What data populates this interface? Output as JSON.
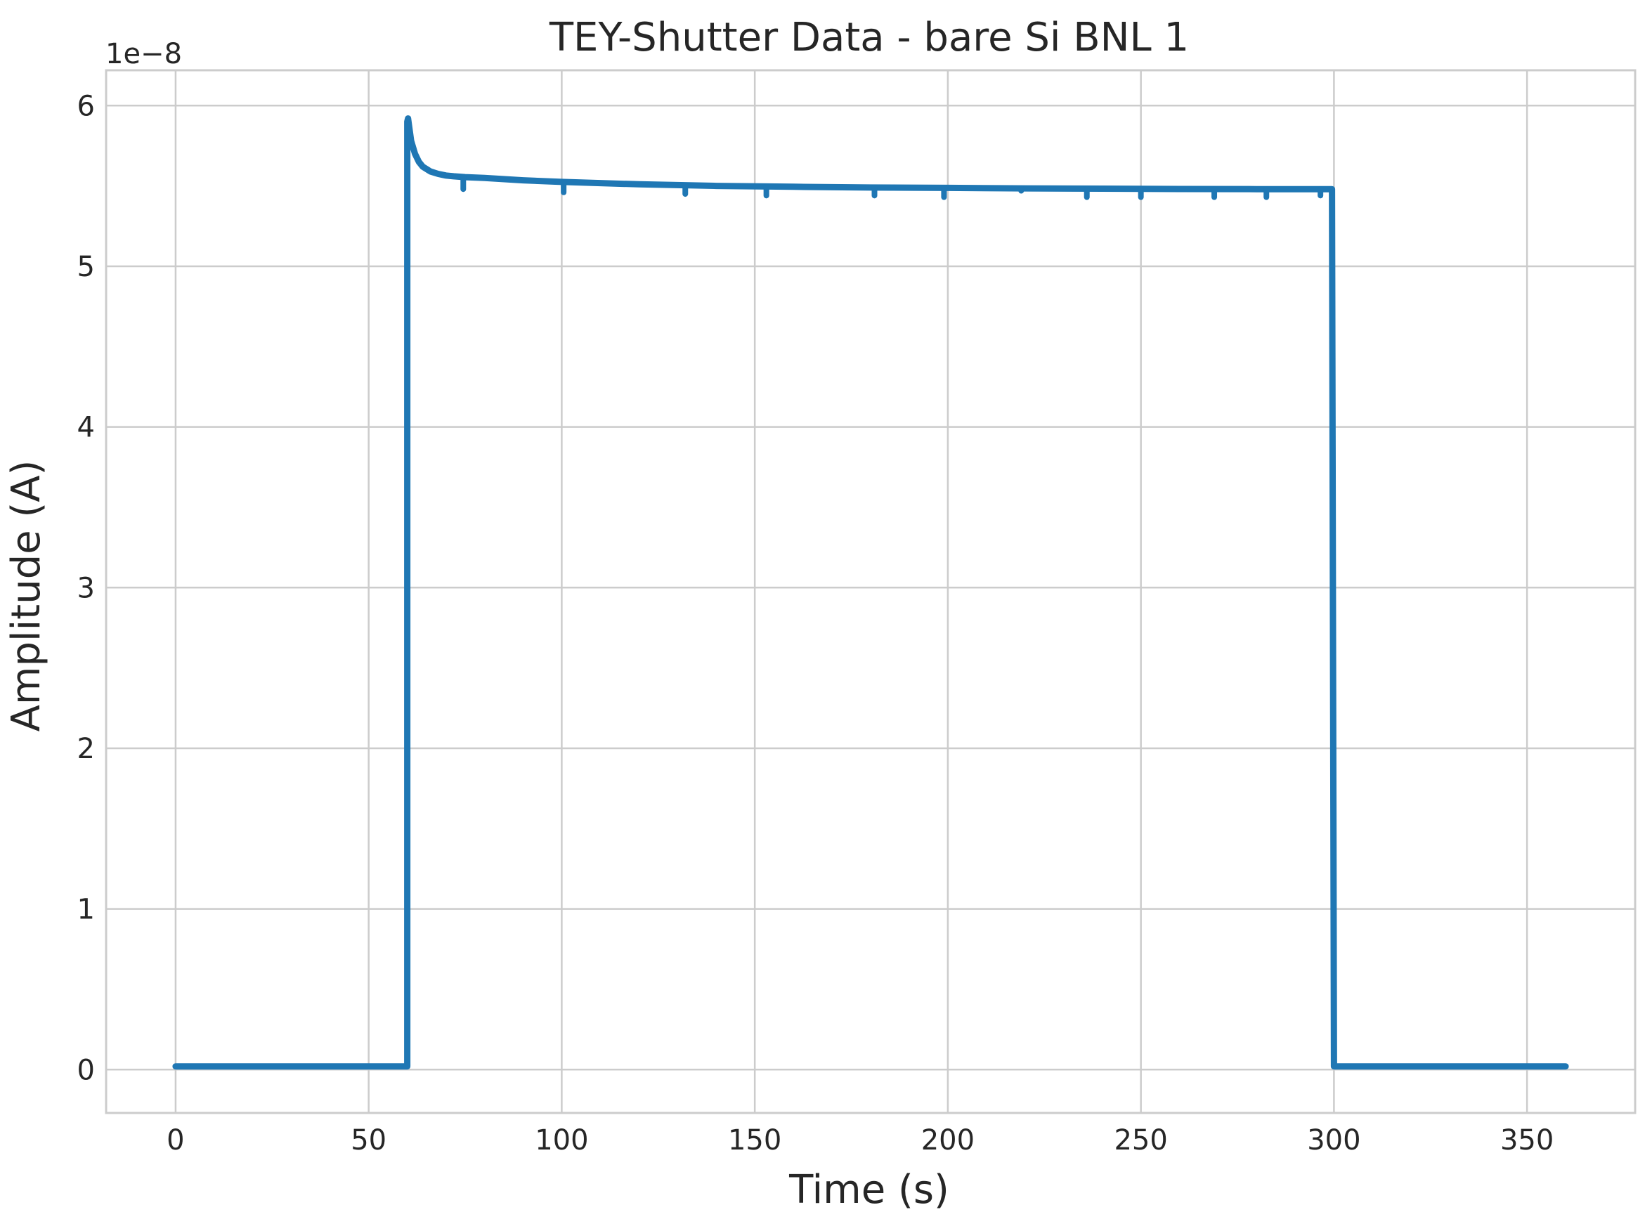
{
  "chart_data": {
    "type": "line",
    "title": "TEY-Shutter Data - bare Si BNL 1",
    "xlabel": "Time (s)",
    "ylabel": "Amplitude (A)",
    "y_offset_label": "1e−8",
    "xlim": [
      -18,
      378
    ],
    "ylim": [
      -0.27,
      6.22
    ],
    "y_multiplier": 1e-08,
    "x_ticks": [
      0,
      50,
      100,
      150,
      200,
      250,
      300,
      350
    ],
    "x_tick_labels": [
      "0",
      "50",
      "100",
      "150",
      "200",
      "250",
      "300",
      "350"
    ],
    "y_ticks": [
      0,
      1,
      2,
      3,
      4,
      5,
      6
    ],
    "y_tick_labels": [
      "0",
      "1",
      "2",
      "3",
      "4",
      "5",
      "6"
    ],
    "grid": true,
    "line_color": "#1f77b4",
    "series": [
      {
        "x": [
          0,
          60,
          60,
          60.2,
          61,
          62,
          63,
          64,
          66,
          68,
          70,
          72,
          75,
          80,
          90,
          100,
          120,
          140,
          160,
          180,
          200,
          220,
          240,
          260,
          280,
          299.5,
          300,
          300.5,
          330,
          360
        ],
        "y": [
          0.02,
          0.02,
          5.9,
          5.92,
          5.78,
          5.7,
          5.65,
          5.62,
          5.59,
          5.575,
          5.565,
          5.56,
          5.555,
          5.55,
          5.535,
          5.525,
          5.51,
          5.5,
          5.495,
          5.49,
          5.488,
          5.485,
          5.483,
          5.481,
          5.48,
          5.48,
          0.02,
          0.02,
          0.02,
          0.02
        ]
      }
    ],
    "dips": [
      {
        "x": 74.5,
        "y": 5.48
      },
      {
        "x": 100.5,
        "y": 5.46
      },
      {
        "x": 132,
        "y": 5.45
      },
      {
        "x": 153,
        "y": 5.44
      },
      {
        "x": 181,
        "y": 5.44
      },
      {
        "x": 199,
        "y": 5.43
      },
      {
        "x": 219,
        "y": 5.47
      },
      {
        "x": 236,
        "y": 5.43
      },
      {
        "x": 250,
        "y": 5.43
      },
      {
        "x": 269,
        "y": 5.43
      },
      {
        "x": 282.5,
        "y": 5.43
      },
      {
        "x": 296.5,
        "y": 5.44
      }
    ]
  }
}
